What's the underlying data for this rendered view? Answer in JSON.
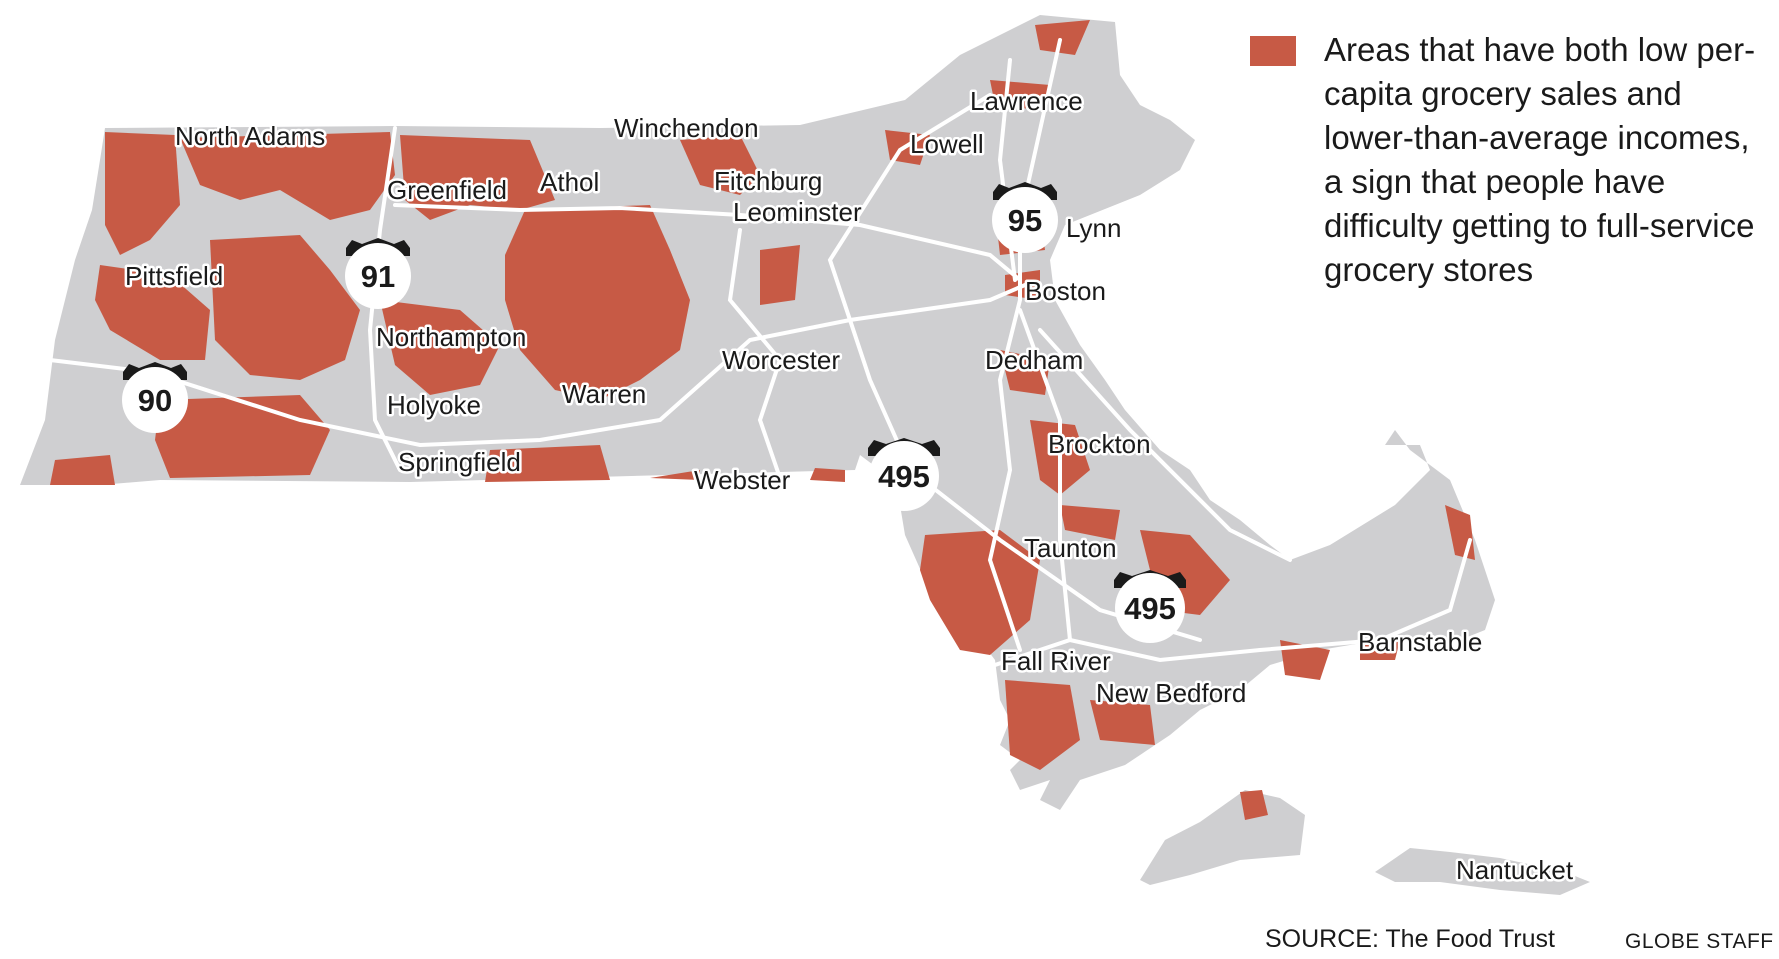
{
  "colors": {
    "land": "#cfcfd1",
    "highlight": "#c75a45",
    "road": "#ffffff",
    "text": "#1a1a1a"
  },
  "legend": {
    "text": "Areas that have both low per-capita grocery sales and lower-than-average incomes, a sign that people have difficulty getting to full-service grocery stores"
  },
  "cities": [
    {
      "id": "north-adams",
      "name": "North Adams"
    },
    {
      "id": "winchendon",
      "name": "Winchendon"
    },
    {
      "id": "lawrence",
      "name": "Lawrence"
    },
    {
      "id": "lowell",
      "name": "Lowell"
    },
    {
      "id": "greenfield",
      "name": "Greenfield"
    },
    {
      "id": "athol",
      "name": "Athol"
    },
    {
      "id": "fitchburg",
      "name": "Fitchburg"
    },
    {
      "id": "leominster",
      "name": "Leominster"
    },
    {
      "id": "lynn",
      "name": "Lynn"
    },
    {
      "id": "pittsfield",
      "name": "Pittsfield"
    },
    {
      "id": "boston",
      "name": "Boston"
    },
    {
      "id": "northampton",
      "name": "Northampton"
    },
    {
      "id": "worcester",
      "name": "Worcester"
    },
    {
      "id": "dedham",
      "name": "Dedham"
    },
    {
      "id": "warren",
      "name": "Warren"
    },
    {
      "id": "holyoke",
      "name": "Holyoke"
    },
    {
      "id": "brockton",
      "name": "Brockton"
    },
    {
      "id": "springfield",
      "name": "Springfield"
    },
    {
      "id": "webster",
      "name": "Webster"
    },
    {
      "id": "taunton",
      "name": "Taunton"
    },
    {
      "id": "barnstable",
      "name": "Barnstable"
    },
    {
      "id": "fall-river",
      "name": "Fall River"
    },
    {
      "id": "new-bedford",
      "name": "New Bedford"
    },
    {
      "id": "nantucket",
      "name": "Nantucket"
    }
  ],
  "highways": [
    {
      "id": "i91",
      "number": "91"
    },
    {
      "id": "i90",
      "number": "90"
    },
    {
      "id": "i95",
      "number": "95"
    },
    {
      "id": "i495-west",
      "number": "495"
    },
    {
      "id": "i495-south",
      "number": "495"
    }
  ],
  "footer": {
    "source": "SOURCE: The Food Trust",
    "credit": "GLOBE STAFF"
  }
}
